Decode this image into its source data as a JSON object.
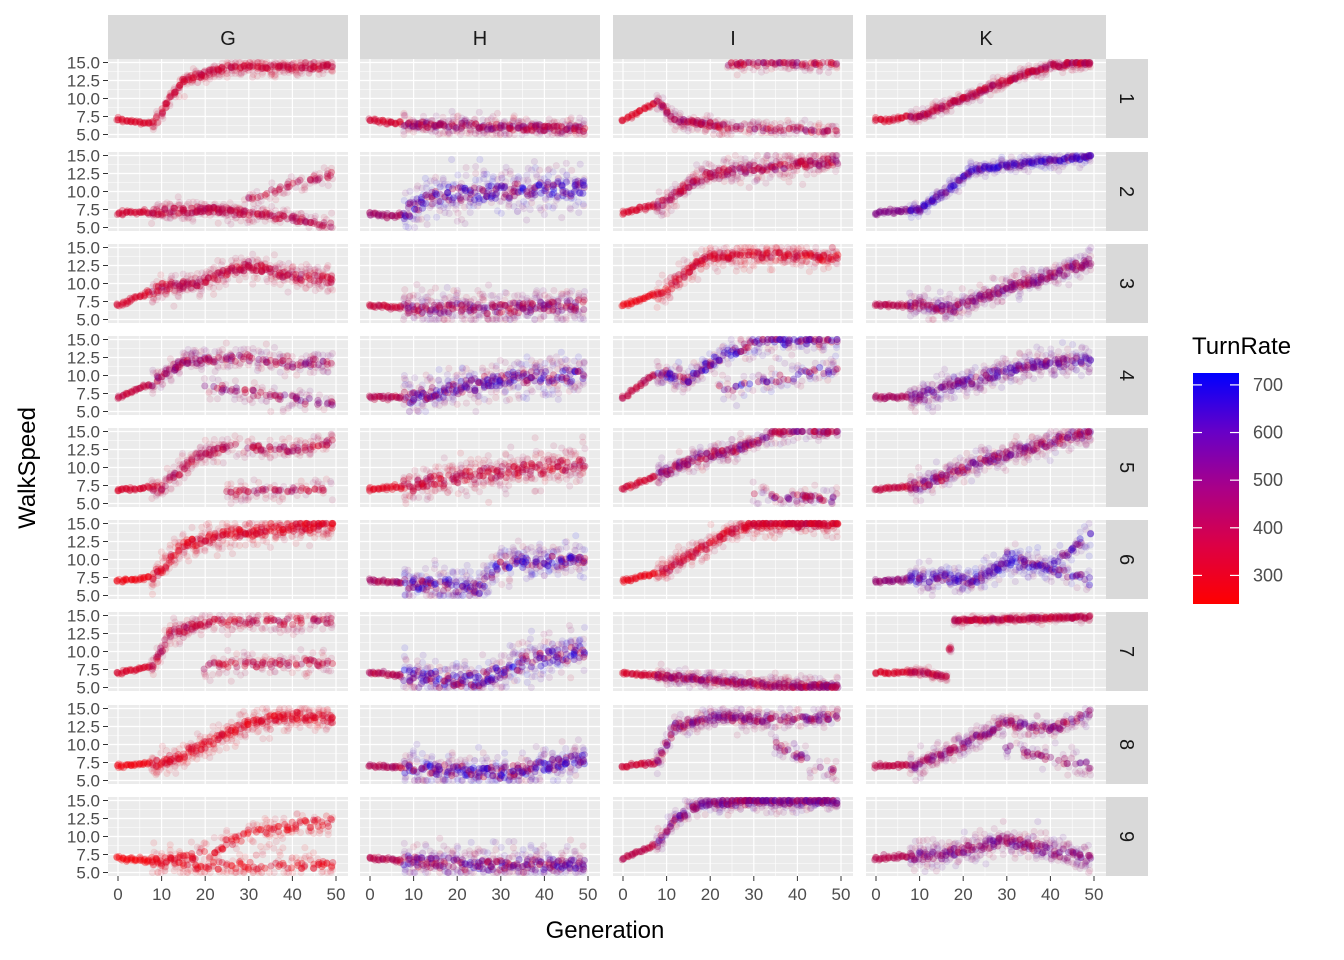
{
  "chart_data": {
    "type": "scatter",
    "xlabel": "Generation",
    "ylabel": "WalkSpeed",
    "color_legend_title": "TurnRate",
    "color_scale": {
      "low": "#ff0000",
      "high": "#0000ff",
      "range": [
        240,
        725
      ],
      "breaks": [
        300,
        400,
        500,
        600,
        700
      ]
    },
    "col_facets": [
      "G",
      "H",
      "I",
      "K"
    ],
    "row_facets": [
      "1",
      "2",
      "3",
      "4",
      "5",
      "6",
      "7",
      "8",
      "9"
    ],
    "xlim": [
      0,
      49
    ],
    "xbreaks": [
      0,
      10,
      20,
      30,
      40,
      50
    ],
    "ylim": [
      5.0,
      15.0
    ],
    "ybreaks": [
      "5.0",
      "7.5",
      "10.0",
      "12.5",
      "15.0"
    ],
    "panels": {
      "G-1": {
        "trend": [
          [
            0,
            7.0
          ],
          [
            8,
            6.5
          ],
          [
            12,
            10
          ],
          [
            15,
            12.5
          ],
          [
            25,
            14.3
          ],
          [
            49,
            14.4
          ]
        ],
        "spread": 1.0,
        "turn": [
          300,
          380
        ]
      },
      "H-1": {
        "trend": [
          [
            0,
            7.0
          ],
          [
            10,
            6.4
          ],
          [
            30,
            6.0
          ],
          [
            49,
            5.8
          ]
        ],
        "spread": 1.2,
        "turn": [
          300,
          520
        ]
      },
      "I-1": {
        "trend": [
          [
            0,
            7.0
          ],
          [
            8,
            9.5
          ],
          [
            12,
            7.0
          ],
          [
            24,
            6.0
          ],
          [
            49,
            5.5
          ]
        ],
        "branch": [
          [
            24,
            14.8
          ],
          [
            49,
            14.9
          ]
        ],
        "spread": 1.0,
        "turn": [
          280,
          480
        ]
      },
      "K-1": {
        "trend": [
          [
            0,
            7.0
          ],
          [
            10,
            7.5
          ],
          [
            20,
            10
          ],
          [
            30,
            12.5
          ],
          [
            40,
            14.5
          ],
          [
            49,
            15.0
          ]
        ],
        "spread": 0.8,
        "turn": [
          300,
          450
        ]
      },
      "G-2": {
        "trend": [
          [
            0,
            7.0
          ],
          [
            20,
            7.5
          ],
          [
            30,
            7.0
          ],
          [
            49,
            5.5
          ]
        ],
        "branch": [
          [
            30,
            9.0
          ],
          [
            49,
            12.5
          ]
        ],
        "spread": 1.2,
        "turn": [
          320,
          420
        ]
      },
      "H-2": {
        "trend": [
          [
            0,
            7.0
          ],
          [
            6,
            6.5
          ],
          [
            15,
            9.5
          ],
          [
            30,
            10
          ],
          [
            49,
            10.5
          ]
        ],
        "spread": 3.0,
        "turn": [
          380,
          700
        ]
      },
      "I-2": {
        "trend": [
          [
            0,
            7.0
          ],
          [
            10,
            8.5
          ],
          [
            15,
            11
          ],
          [
            20,
            12.5
          ],
          [
            35,
            13.5
          ],
          [
            49,
            14.2
          ]
        ],
        "spread": 1.5,
        "turn": [
          300,
          480
        ]
      },
      "K-2": {
        "trend": [
          [
            0,
            7.0
          ],
          [
            10,
            7.5
          ],
          [
            16,
            10
          ],
          [
            22,
            13.0
          ],
          [
            35,
            14.0
          ],
          [
            49,
            14.8
          ]
        ],
        "spread": 0.8,
        "turn": [
          450,
          700
        ]
      },
      "G-3": {
        "trend": [
          [
            0,
            7.0
          ],
          [
            10,
            9.5
          ],
          [
            18,
            10
          ],
          [
            30,
            12.5
          ],
          [
            40,
            11
          ],
          [
            49,
            10.5
          ]
        ],
        "spread": 1.6,
        "turn": [
          300,
          420
        ]
      },
      "H-3": {
        "trend": [
          [
            0,
            7.0
          ],
          [
            10,
            6.5
          ],
          [
            30,
            6.5
          ],
          [
            49,
            7.0
          ]
        ],
        "spread": 2.2,
        "turn": [
          320,
          560
        ]
      },
      "I-3": {
        "trend": [
          [
            0,
            7.0
          ],
          [
            10,
            9.0
          ],
          [
            16,
            12.5
          ],
          [
            20,
            13.8
          ],
          [
            35,
            14.0
          ],
          [
            49,
            13.5
          ]
        ],
        "spread": 1.4,
        "turn": [
          260,
          380
        ]
      },
      "K-3": {
        "trend": [
          [
            0,
            7.0
          ],
          [
            10,
            7.0
          ],
          [
            18,
            6.5
          ],
          [
            30,
            9.5
          ],
          [
            40,
            11
          ],
          [
            49,
            13.0
          ]
        ],
        "spread": 1.6,
        "turn": [
          350,
          560
        ]
      },
      "G-4": {
        "trend": [
          [
            0,
            7.0
          ],
          [
            8,
            9
          ],
          [
            15,
            12
          ],
          [
            30,
            12.5
          ],
          [
            40,
            11.5
          ],
          [
            49,
            12.0
          ]
        ],
        "branch": [
          [
            20,
            8.5
          ],
          [
            49,
            6.0
          ]
        ],
        "spread": 1.4,
        "turn": [
          330,
          520
        ]
      },
      "H-4": {
        "trend": [
          [
            0,
            7.0
          ],
          [
            10,
            7.0
          ],
          [
            30,
            9.5
          ],
          [
            49,
            10.0
          ]
        ],
        "spread": 2.6,
        "turn": [
          340,
          680
        ]
      },
      "I-4": {
        "trend": [
          [
            0,
            7.0
          ],
          [
            8,
            10.5
          ],
          [
            15,
            9.5
          ],
          [
            22,
            12.5
          ],
          [
            30,
            14.5
          ],
          [
            49,
            14.9
          ]
        ],
        "branch": [
          [
            22,
            8.0
          ],
          [
            49,
            11.0
          ]
        ],
        "spread": 1.6,
        "turn": [
          320,
          700
        ]
      },
      "K-4": {
        "trend": [
          [
            0,
            7.0
          ],
          [
            10,
            7.0
          ],
          [
            20,
            9.0
          ],
          [
            35,
            11.5
          ],
          [
            49,
            12.0
          ]
        ],
        "spread": 1.8,
        "turn": [
          380,
          620
        ]
      },
      "G-5": {
        "trend": [
          [
            0,
            7.0
          ],
          [
            10,
            7.2
          ],
          [
            18,
            11.5
          ],
          [
            25,
            13.0
          ],
          [
            40,
            12.5
          ],
          [
            49,
            13.5
          ]
        ],
        "branch": [
          [
            25,
            6.5
          ],
          [
            49,
            7.0
          ]
        ],
        "spread": 1.2,
        "turn": [
          300,
          440
        ]
      },
      "H-5": {
        "trend": [
          [
            0,
            7.0
          ],
          [
            10,
            7.5
          ],
          [
            25,
            9.0
          ],
          [
            49,
            10.5
          ]
        ],
        "spread": 2.4,
        "turn": [
          280,
          420
        ]
      },
      "I-5": {
        "trend": [
          [
            0,
            7.0
          ],
          [
            10,
            9.5
          ],
          [
            18,
            11.5
          ],
          [
            26,
            12.5
          ],
          [
            35,
            14.8
          ],
          [
            49,
            15.0
          ]
        ],
        "branch": [
          [
            30,
            6.0
          ],
          [
            49,
            5.5
          ]
        ],
        "spread": 1.4,
        "turn": [
          300,
          560
        ]
      },
      "K-5": {
        "trend": [
          [
            0,
            7.0
          ],
          [
            10,
            7.5
          ],
          [
            25,
            11
          ],
          [
            40,
            13.5
          ],
          [
            49,
            14.8
          ]
        ],
        "spread": 1.6,
        "turn": [
          320,
          580
        ]
      },
      "G-6": {
        "trend": [
          [
            0,
            7.0
          ],
          [
            8,
            7.5
          ],
          [
            15,
            12
          ],
          [
            25,
            13.5
          ],
          [
            49,
            14.8
          ]
        ],
        "spread": 1.8,
        "turn": [
          260,
          360
        ]
      },
      "H-6": {
        "trend": [
          [
            0,
            7.0
          ],
          [
            15,
            6.5
          ],
          [
            25,
            6.0
          ],
          [
            30,
            9.5
          ],
          [
            49,
            10.0
          ]
        ],
        "spread": 2.4,
        "turn": [
          360,
          720
        ]
      },
      "I-6": {
        "trend": [
          [
            0,
            7.0
          ],
          [
            10,
            8.5
          ],
          [
            18,
            11.5
          ],
          [
            25,
            14.0
          ],
          [
            30,
            14.8
          ],
          [
            49,
            14.9
          ]
        ],
        "spread": 1.4,
        "turn": [
          270,
          380
        ]
      },
      "K-6": {
        "trend": [
          [
            0,
            7.0
          ],
          [
            15,
            7.5
          ],
          [
            22,
            7.0
          ],
          [
            30,
            9.5
          ],
          [
            40,
            9.0
          ],
          [
            49,
            13.5
          ]
        ],
        "branch": [
          [
            30,
            10.5
          ],
          [
            49,
            7.0
          ]
        ],
        "spread": 1.6,
        "turn": [
          420,
          700
        ]
      },
      "G-7": {
        "trend": [
          [
            0,
            7.0
          ],
          [
            8,
            8.0
          ],
          [
            12,
            12.5
          ],
          [
            20,
            14.0
          ],
          [
            49,
            14.3
          ]
        ],
        "branch": [
          [
            20,
            8.0
          ],
          [
            49,
            8.5
          ]
        ],
        "spread": 1.4,
        "turn": [
          300,
          420
        ]
      },
      "H-7": {
        "trend": [
          [
            0,
            7.0
          ],
          [
            10,
            6.5
          ],
          [
            25,
            6.0
          ],
          [
            35,
            8.5
          ],
          [
            49,
            10.0
          ]
        ],
        "spread": 2.8,
        "turn": [
          340,
          720
        ]
      },
      "I-7": {
        "trend": [
          [
            0,
            7.0
          ],
          [
            10,
            6.5
          ],
          [
            25,
            5.8
          ],
          [
            35,
            5.3
          ],
          [
            49,
            5.2
          ]
        ],
        "spread": 1.0,
        "turn": [
          300,
          520
        ]
      },
      "K-7": {
        "trend": [
          [
            0,
            7.0
          ],
          [
            10,
            7.2
          ],
          [
            16,
            6.5
          ],
          [
            18,
            14.3
          ],
          [
            49,
            14.8
          ]
        ],
        "spread": 0.5,
        "turn": [
          300,
          420
        ]
      },
      "G-8": {
        "trend": [
          [
            0,
            7.0
          ],
          [
            10,
            7.5
          ],
          [
            20,
            10
          ],
          [
            30,
            13
          ],
          [
            40,
            14
          ],
          [
            49,
            13.5
          ]
        ],
        "spread": 1.6,
        "turn": [
          260,
          340
        ]
      },
      "H-8": {
        "trend": [
          [
            0,
            7.0
          ],
          [
            15,
            6.5
          ],
          [
            30,
            6.0
          ],
          [
            40,
            7.0
          ],
          [
            49,
            8.0
          ]
        ],
        "spread": 2.2,
        "turn": [
          340,
          720
        ]
      },
      "I-8": {
        "trend": [
          [
            0,
            7.0
          ],
          [
            8,
            7.5
          ],
          [
            12,
            12.5
          ],
          [
            20,
            13.8
          ],
          [
            40,
            13.5
          ],
          [
            49,
            14.0
          ]
        ],
        "branch": [
          [
            35,
            10.0
          ],
          [
            49,
            6.0
          ]
        ],
        "spread": 1.4,
        "turn": [
          320,
          560
        ]
      },
      "K-8": {
        "trend": [
          [
            0,
            7.0
          ],
          [
            10,
            7.2
          ],
          [
            20,
            10
          ],
          [
            30,
            13
          ],
          [
            40,
            12
          ],
          [
            49,
            14.5
          ]
        ],
        "branch": [
          [
            30,
            9.5
          ],
          [
            49,
            7.0
          ]
        ],
        "spread": 1.4,
        "turn": [
          340,
          540
        ]
      },
      "G-9": {
        "trend": [
          [
            0,
            7.0
          ],
          [
            10,
            6.5
          ],
          [
            20,
            7.5
          ],
          [
            30,
            10.5
          ],
          [
            40,
            11.5
          ],
          [
            49,
            12.0
          ]
        ],
        "branch": [
          [
            15,
            6.0
          ],
          [
            30,
            6.0
          ]
        ],
        "spread": 1.6,
        "turn": [
          250,
          320
        ]
      },
      "H-9": {
        "trend": [
          [
            0,
            7.0
          ],
          [
            10,
            6.5
          ],
          [
            25,
            6.0
          ],
          [
            49,
            6.2
          ]
        ],
        "spread": 2.2,
        "turn": [
          340,
          640
        ]
      },
      "I-9": {
        "trend": [
          [
            0,
            7.0
          ],
          [
            8,
            9.0
          ],
          [
            12,
            12.5
          ],
          [
            18,
            14.5
          ],
          [
            30,
            14.8
          ],
          [
            49,
            14.9
          ]
        ],
        "spread": 1.2,
        "turn": [
          340,
          600
        ]
      },
      "K-9": {
        "trend": [
          [
            0,
            7.0
          ],
          [
            15,
            7.5
          ],
          [
            30,
            9.5
          ],
          [
            40,
            8.0
          ],
          [
            49,
            7.0
          ]
        ],
        "spread": 1.8,
        "turn": [
          360,
          560
        ]
      }
    }
  }
}
